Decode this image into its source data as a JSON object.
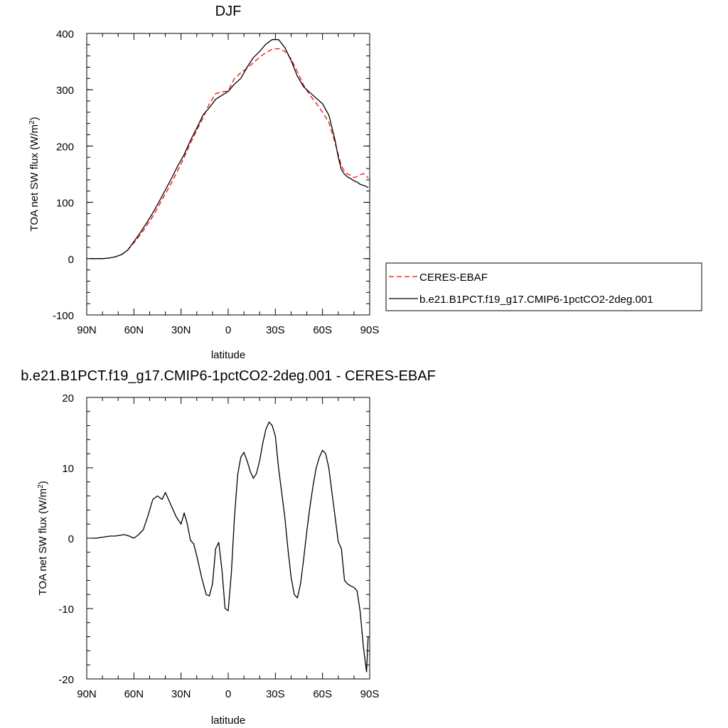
{
  "chart_data": [
    {
      "type": "line",
      "title": "DJF",
      "xlabel": "latitude",
      "ylabel": "TOA net SW flux (W/m²)",
      "ylabel_base": "TOA net SW flux (W/m",
      "ylabel_sup": "2",
      "ylabel_tail": ")",
      "xlim": [
        -90,
        90
      ],
      "ylim": [
        -100,
        400
      ],
      "x_ticks": [
        -90,
        -60,
        -30,
        0,
        30,
        60,
        90
      ],
      "x_tick_labels": [
        "90N",
        "60N",
        "30N",
        "0",
        "30S",
        "60S",
        "90S"
      ],
      "y_ticks": [
        -100,
        0,
        100,
        200,
        300,
        400
      ],
      "y_tick_labels": [
        "-100",
        "0",
        "100",
        "200",
        "300",
        "400"
      ],
      "grid": false,
      "legend_position": "right",
      "series": [
        {
          "name": "CERES-EBAF",
          "color": "#ff0000",
          "style": "dashed",
          "x": [
            -88,
            -84,
            -80,
            -76,
            -72,
            -68,
            -64,
            -60,
            -56,
            -52,
            -48,
            -44,
            -40,
            -36,
            -32,
            -28,
            -24,
            -20,
            -16,
            -12,
            -8,
            -4,
            0,
            4,
            8,
            12,
            16,
            20,
            24,
            28,
            32,
            36,
            40,
            44,
            48,
            52,
            56,
            60,
            64,
            68,
            70,
            72,
            74,
            76,
            78,
            80,
            82,
            84,
            86,
            88,
            89
          ],
          "y": [
            0,
            0,
            0,
            1,
            3,
            7,
            15,
            28,
            42,
            58,
            75,
            95,
            115,
            135,
            157,
            180,
            205,
            228,
            250,
            275,
            293,
            296,
            298,
            320,
            330,
            338,
            348,
            358,
            366,
            372,
            373,
            368,
            355,
            332,
            308,
            290,
            276,
            260,
            242,
            205,
            185,
            165,
            155,
            150,
            148,
            144,
            146,
            149,
            151,
            147,
            143
          ]
        },
        {
          "name": "b.e21.B1PCT.f19_g17.CMIP6-1pctCO2-2deg.001",
          "color": "#000000",
          "style": "solid",
          "x": [
            -88,
            -84,
            -80,
            -76,
            -72,
            -68,
            -64,
            -60,
            -56,
            -52,
            -48,
            -44,
            -40,
            -36,
            -32,
            -28,
            -24,
            -20,
            -16,
            -12,
            -8,
            -4,
            0,
            4,
            8,
            12,
            16,
            20,
            24,
            28,
            32,
            36,
            40,
            44,
            48,
            52,
            56,
            60,
            64,
            68,
            70,
            72,
            74,
            76,
            78,
            80,
            82,
            84,
            86,
            88,
            89
          ],
          "y": [
            0,
            0,
            0,
            1,
            3,
            7,
            15,
            30,
            46,
            63,
            81,
            101,
            122,
            143,
            165,
            185,
            210,
            232,
            255,
            268,
            283,
            290,
            297,
            310,
            320,
            340,
            357,
            368,
            381,
            389,
            389,
            375,
            352,
            324,
            305,
            295,
            285,
            275,
            255,
            210,
            180,
            158,
            150,
            145,
            142,
            138,
            136,
            132,
            130,
            128,
            126
          ]
        }
      ]
    },
    {
      "type": "line",
      "title": "b.e21.B1PCT.f19_g17.CMIP6-1pctCO2-2deg.001 - CERES-EBAF",
      "xlabel": "latitude",
      "ylabel": "TOA net SW flux (W/m²)",
      "ylabel_base": "TOA net SW flux (W/m",
      "ylabel_sup": "2",
      "ylabel_tail": ")",
      "xlim": [
        -90,
        90
      ],
      "ylim": [
        -20,
        20
      ],
      "x_ticks": [
        -90,
        -60,
        -30,
        0,
        30,
        60,
        90
      ],
      "x_tick_labels": [
        "90N",
        "60N",
        "30N",
        "0",
        "30S",
        "60S",
        "90S"
      ],
      "y_ticks": [
        -20,
        -10,
        0,
        10,
        20
      ],
      "y_tick_labels": [
        "-20",
        "-10",
        "0",
        "10",
        "20"
      ],
      "grid": false,
      "series": [
        {
          "color": "#000000",
          "style": "solid",
          "x": [
            -87,
            -84,
            -81,
            -78,
            -75,
            -72,
            -69,
            -66,
            -63,
            -60,
            -57,
            -54,
            -51,
            -48,
            -45,
            -42,
            -40,
            -38,
            -36,
            -33,
            -30,
            -28,
            -26,
            -24,
            -22,
            -20,
            -17,
            -14,
            -12,
            -10,
            -8,
            -6,
            -5,
            -4,
            -2,
            0,
            2,
            4,
            6,
            8,
            10,
            12,
            14,
            16,
            18,
            20,
            22,
            24,
            26,
            28,
            30,
            32,
            34,
            36,
            38,
            40,
            42,
            44,
            46,
            48,
            50,
            52,
            54,
            56,
            58,
            60,
            62,
            64,
            66,
            68,
            70,
            72,
            74,
            76,
            78,
            80,
            82,
            84,
            86,
            88,
            89
          ],
          "y": [
            0,
            0,
            0.1,
            0.2,
            0.3,
            0.3,
            0.4,
            0.5,
            0.3,
            0,
            0.5,
            1.2,
            3.2,
            5.5,
            6,
            5.5,
            6.5,
            5.5,
            4.5,
            3,
            2,
            3.6,
            2,
            -0.3,
            -0.8,
            -2.5,
            -5.5,
            -8,
            -8.2,
            -6.5,
            -1.5,
            -0.6,
            -2.5,
            -4.5,
            -10,
            -10.3,
            -5,
            3,
            9,
            11.5,
            12.2,
            11,
            9.5,
            8.5,
            9.2,
            11,
            13.5,
            15.5,
            16.5,
            16,
            14.5,
            10,
            6.5,
            3,
            -1.5,
            -5.5,
            -8,
            -8.5,
            -6.5,
            -3,
            1,
            4.5,
            7.5,
            10,
            11.5,
            12.5,
            12,
            10,
            6.5,
            3,
            -0.5,
            -1.5,
            -6,
            -6.5,
            -6.8,
            -7,
            -7.5,
            -10.5,
            -15.5,
            -19,
            -14
          ]
        }
      ]
    }
  ]
}
